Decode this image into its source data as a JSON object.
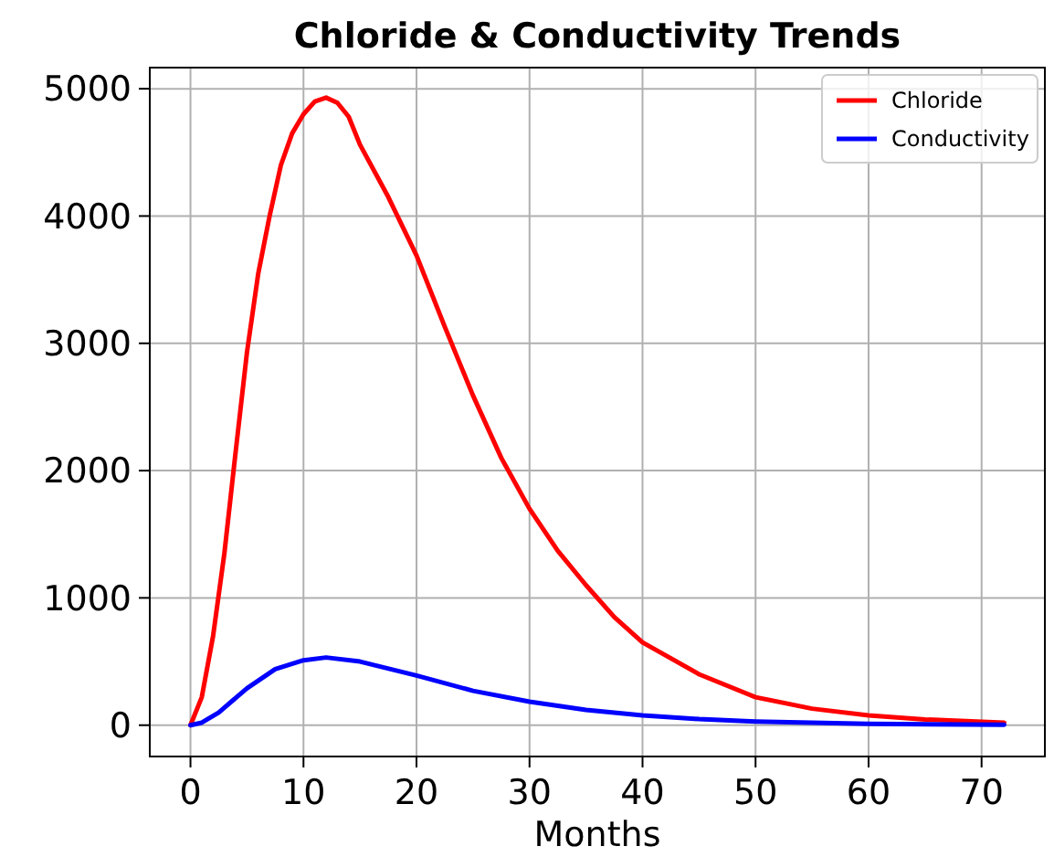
{
  "chart_data": {
    "type": "line",
    "title": "Chloride & Conductivity Trends",
    "xlabel": "Months",
    "xlim": [
      -3.6,
      75.6
    ],
    "xticks": [
      0,
      10,
      20,
      30,
      40,
      50,
      60,
      70
    ],
    "ylim": [
      -246,
      5166
    ],
    "yticks": [
      0,
      1000,
      2000,
      3000,
      4000,
      5000
    ],
    "grid": true,
    "legend": "top right",
    "line_style": "solid",
    "marker": "none",
    "series": [
      {
        "name": "Chloride",
        "color": "#ff0000",
        "x": [
          0,
          1,
          2,
          3,
          4,
          5,
          6,
          7,
          8,
          9,
          10,
          11,
          12,
          13,
          14,
          15,
          17.5,
          20,
          22.5,
          25,
          27.5,
          30,
          32.5,
          35,
          37.5,
          40,
          45,
          50,
          55,
          60,
          65,
          72
        ],
        "values": [
          0,
          220,
          700,
          1350,
          2150,
          2930,
          3550,
          4000,
          4400,
          4650,
          4800,
          4900,
          4930,
          4890,
          4780,
          4560,
          4150,
          3690,
          3130,
          2590,
          2100,
          1700,
          1370,
          1100,
          850,
          650,
          400,
          220,
          130,
          77,
          45,
          20
        ]
      },
      {
        "name": "Conductivity",
        "color": "#0000ff",
        "x": [
          0,
          1,
          2.5,
          5,
          7.5,
          10,
          12,
          15,
          20,
          25,
          30,
          35,
          40,
          45,
          50,
          60,
          72
        ],
        "values": [
          0,
          20,
          100,
          290,
          440,
          510,
          532,
          500,
          390,
          270,
          185,
          120,
          77,
          48,
          29,
          10,
          3
        ]
      }
    ]
  }
}
